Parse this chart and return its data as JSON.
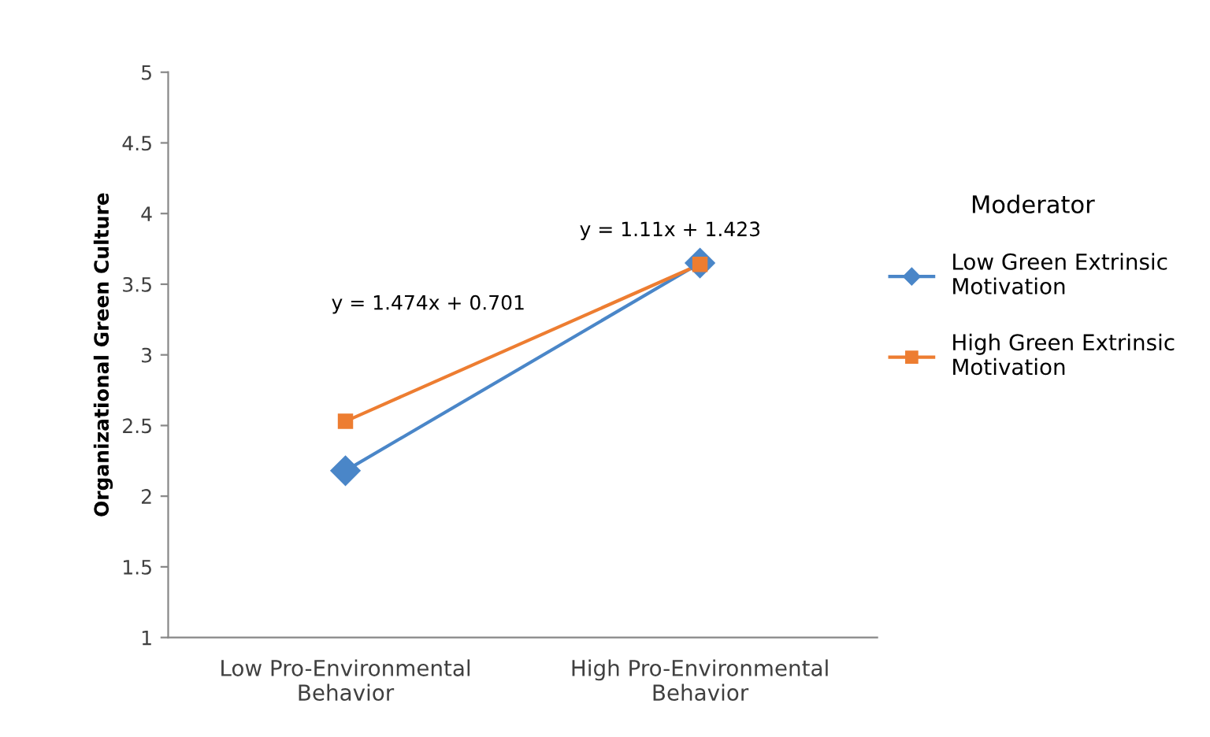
{
  "chart_data": {
    "type": "line",
    "ylabel": "Organizational Green Culture",
    "legend_title": "Moderator",
    "legend": "right",
    "categories": [
      "Low Pro-Environmental\nBehavior",
      "High Pro-Environmental\nBehavior"
    ],
    "series": [
      {
        "name": "Low Green Extrinsic\nMotivation",
        "color": "#4a86c8",
        "marker": "diamond",
        "values": [
          2.18,
          3.65
        ]
      },
      {
        "name": "High Green Extrinsic\nMotivation",
        "color": "#ed7d31",
        "marker": "square",
        "values": [
          2.53,
          3.64
        ]
      }
    ],
    "ylim": [
      1,
      5
    ],
    "yticks": [
      1,
      1.5,
      2,
      2.5,
      3,
      3.5,
      4,
      4.5,
      5
    ],
    "grid": false,
    "annotations": [
      "y = 1.474x + 0.701",
      "y = 1.11x + 1.423"
    ]
  }
}
